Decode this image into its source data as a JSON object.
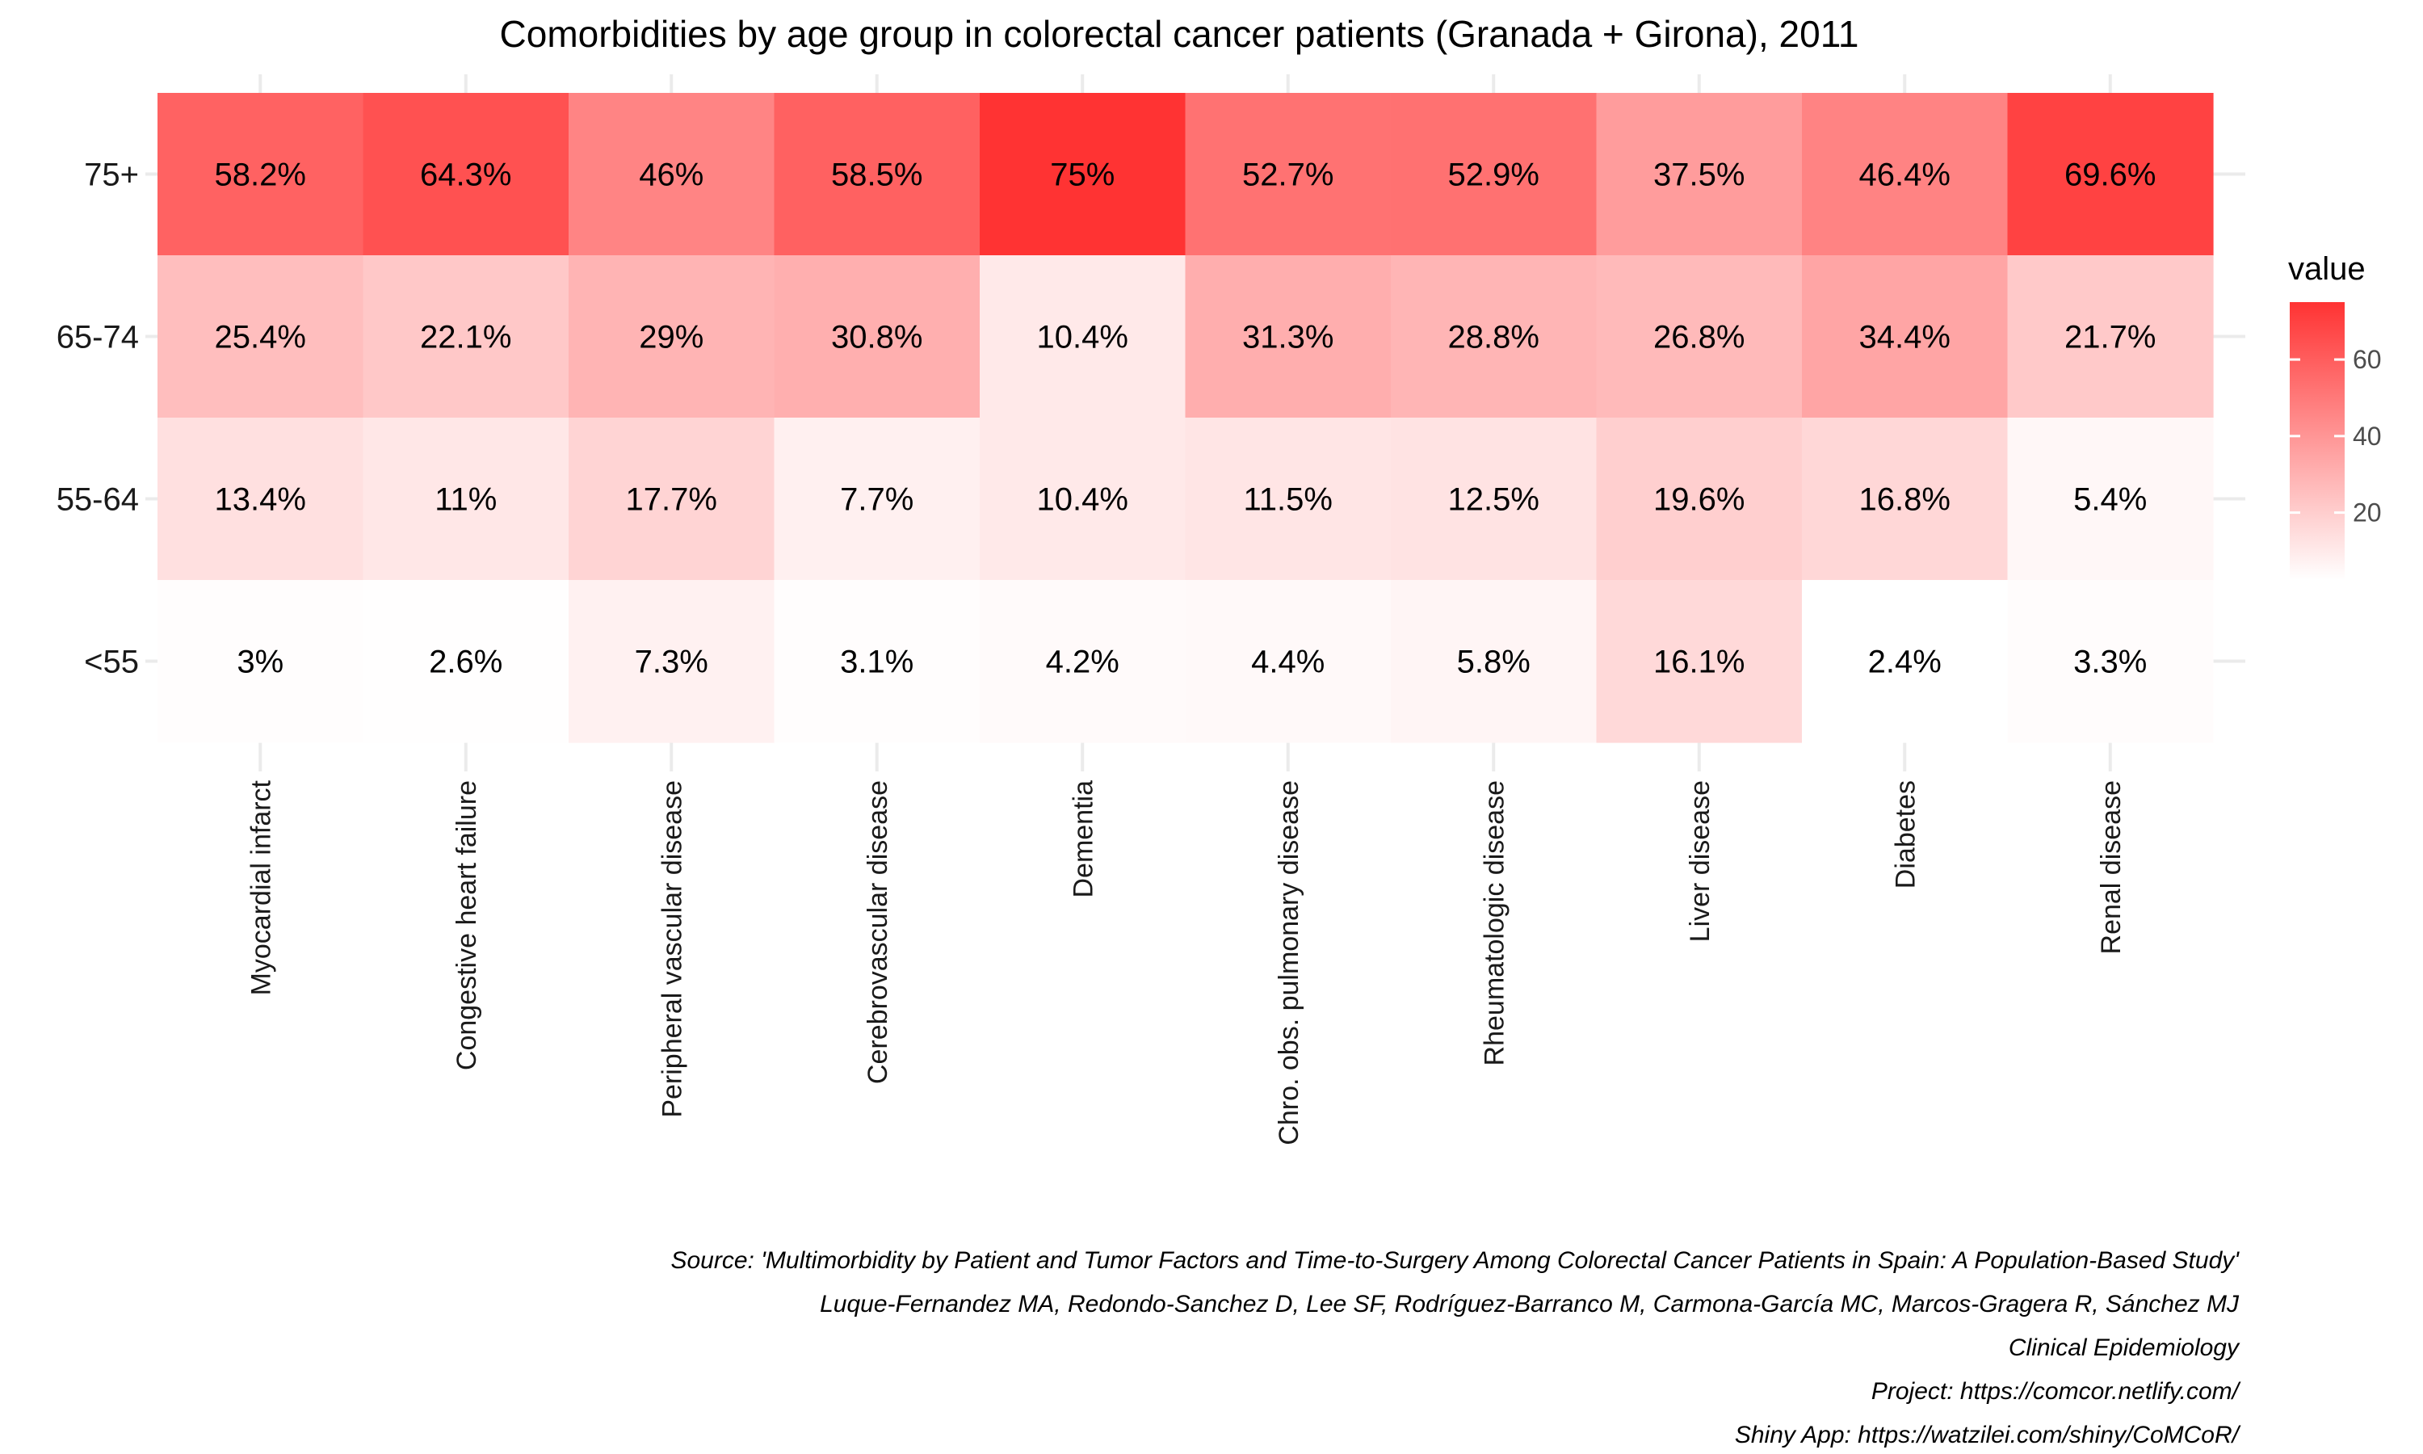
{
  "chart_data": {
    "type": "heatmap",
    "title": "Comorbidities by age group in colorectal cancer patients (Granada + Girona), 2011",
    "x_categories": [
      "Myocardial infarct",
      "Congestive heart failure",
      "Peripheral vascular disease",
      "Cerebrovascular disease",
      "Dementia",
      "Chro. obs. pulmonary disease",
      "Rheumatologic disease",
      "Liver disease",
      "Diabetes",
      "Renal disease"
    ],
    "y_categories": [
      "75+",
      "65-74",
      "55-64",
      "<55"
    ],
    "values": [
      [
        58.2,
        64.3,
        46.0,
        58.5,
        75.0,
        52.7,
        52.9,
        37.5,
        46.4,
        69.6
      ],
      [
        25.4,
        22.1,
        29.0,
        30.8,
        10.4,
        31.3,
        28.8,
        26.8,
        34.4,
        21.7
      ],
      [
        13.4,
        11.0,
        17.7,
        7.7,
        10.4,
        11.5,
        12.5,
        19.6,
        16.8,
        5.4
      ],
      [
        3.0,
        2.6,
        7.3,
        3.1,
        4.2,
        4.4,
        5.8,
        16.1,
        2.4,
        3.3
      ]
    ],
    "labels": [
      [
        "58.2%",
        "64.3%",
        "46%",
        "58.5%",
        "75%",
        "52.7%",
        "52.9%",
        "37.5%",
        "46.4%",
        "69.6%"
      ],
      [
        "25.4%",
        "22.1%",
        "29%",
        "30.8%",
        "10.4%",
        "31.3%",
        "28.8%",
        "26.8%",
        "34.4%",
        "21.7%"
      ],
      [
        "13.4%",
        "11%",
        "17.7%",
        "7.7%",
        "10.4%",
        "11.5%",
        "12.5%",
        "19.6%",
        "16.8%",
        "5.4%"
      ],
      [
        "3%",
        "2.6%",
        "7.3%",
        "3.1%",
        "4.2%",
        "4.4%",
        "5.8%",
        "16.1%",
        "2.4%",
        "3.3%"
      ]
    ],
    "legend": {
      "title": "value",
      "ticks": [
        20,
        40,
        60
      ],
      "range": [
        2.4,
        75
      ],
      "low_color": "#ffffff",
      "high_color": "#ff3333",
      "placement": "right"
    },
    "grid": true
  },
  "caption": [
    "Source: 'Multimorbidity by Patient and Tumor Factors and Time-to-Surgery Among Colorectal Cancer Patients in Spain: A Population-Based Study'",
    "Luque-Fernandez MA, Redondo-Sanchez D, Lee SF, Rodríguez-Barranco M, Carmona-García MC, Marcos-Gragera R, Sánchez MJ",
    "Clinical Epidemiology",
    "Project: https://comcor.netlify.com/",
    "Shiny App: https://watzilei.com/shiny/CoMCoR/"
  ]
}
